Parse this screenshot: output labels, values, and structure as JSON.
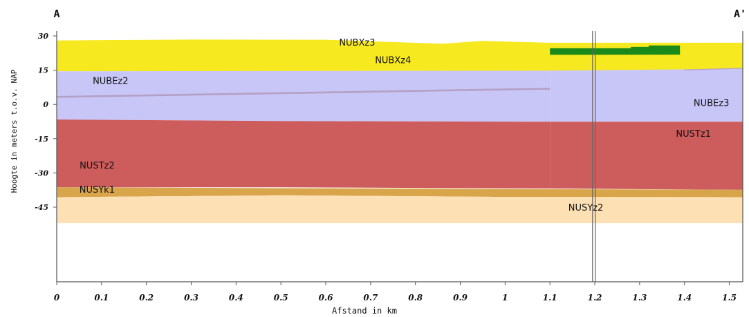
{
  "chart_data": {
    "type": "area",
    "section_labels": {
      "start": "A",
      "end": "A'"
    },
    "xlabel": "Afstand in km",
    "ylabel": "Hoogte in meters t.o.v. NAP",
    "xlim": [
      0,
      1.53
    ],
    "ylim": [
      -52,
      31
    ],
    "x_ticks": [
      0,
      0.1,
      0.2,
      0.3,
      0.4,
      0.5,
      0.6,
      0.7,
      0.8,
      0.9,
      1,
      1.1,
      1.2,
      1.3,
      1.4,
      1.5
    ],
    "x_tick_labels": [
      "0",
      "0.1",
      "0.2",
      "0.3",
      "0.4",
      "0.5",
      "0.6",
      "0.7",
      "0.8",
      "0.9",
      "1",
      "1.1",
      "1.2",
      "1.3",
      "1.4",
      "1.5"
    ],
    "y_ticks": [
      30,
      15,
      0,
      -15,
      -30,
      -45
    ],
    "y_tick_labels": [
      "30",
      "15",
      "0",
      "-15",
      "-30",
      "-45"
    ],
    "grid": false,
    "marker_line_x": 1.195,
    "layers": [
      {
        "name": "NUBXz3",
        "color": "#f7e91f",
        "top": [
          [
            0,
            28
          ],
          [
            0.3,
            28.4
          ],
          [
            0.6,
            28.3
          ],
          [
            0.86,
            26.6
          ],
          [
            0.95,
            27.8
          ],
          [
            1.1,
            27
          ]
        ],
        "bottom": [
          [
            0,
            14.5
          ],
          [
            1.53,
            14.8
          ]
        ]
      },
      {
        "name": "NUBXz4",
        "color": "#f7e91f",
        "top": [
          [
            1.1,
            24.5
          ],
          [
            1.53,
            26.2
          ]
        ],
        "bottom": [
          [
            0,
            14.5
          ],
          [
            1.53,
            14.8
          ]
        ]
      },
      {
        "name": "NUBXz4-green",
        "color": "#1a8a1a",
        "top": [
          [
            1.1,
            24.6
          ],
          [
            1.28,
            24.6
          ],
          [
            1.28,
            25.2
          ],
          [
            1.32,
            25.2
          ],
          [
            1.32,
            25.8
          ],
          [
            1.39,
            25.8
          ]
        ],
        "bottom": [
          [
            1.1,
            21.7
          ],
          [
            1.39,
            21.8
          ]
        ]
      },
      {
        "name": "NUBEz2",
        "color": "#c8c6f7",
        "top": [
          [
            0,
            14.5
          ],
          [
            1.1,
            14.8
          ]
        ],
        "bottom": [
          [
            0,
            -6.6
          ],
          [
            0.5,
            -7.3
          ],
          [
            1.1,
            -7.6
          ]
        ]
      },
      {
        "name": "NUBEz3",
        "color": "#c8c6f7",
        "top": [
          [
            1.1,
            14.8
          ],
          [
            1.53,
            15.6
          ]
        ],
        "bottom": [
          [
            1.1,
            -7.6
          ],
          [
            1.53,
            -7.6
          ]
        ]
      },
      {
        "name": "NUBEz2-line",
        "color": "#b4a0c4",
        "top": [
          [
            0,
            3.7
          ],
          [
            1.1,
            7.3
          ]
        ],
        "bottom": [
          [
            0,
            2.9
          ],
          [
            1.1,
            6.5
          ]
        ]
      },
      {
        "name": "NUBEz3-line",
        "color": "#b4a0c4",
        "top": [
          [
            1.4,
            15.3
          ],
          [
            1.53,
            16.0
          ]
        ],
        "bottom": [
          [
            1.4,
            14.9
          ],
          [
            1.53,
            15.6
          ]
        ]
      },
      {
        "name": "NUSTz2",
        "color": "#cd5c5c",
        "top": [
          [
            0,
            -6.6
          ],
          [
            0.5,
            -7.3
          ],
          [
            1.1,
            -7.6
          ]
        ],
        "bottom": [
          [
            0,
            -36.3
          ],
          [
            0.5,
            -36.3
          ],
          [
            1.1,
            -36.8
          ]
        ]
      },
      {
        "name": "NUSTz1",
        "color": "#cd5c5c",
        "top": [
          [
            1.1,
            -7.6
          ],
          [
            1.53,
            -7.6
          ]
        ],
        "bottom": [
          [
            1.1,
            -36.8
          ],
          [
            1.53,
            -37.4
          ]
        ]
      },
      {
        "name": "NUSYk1",
        "color": "#d9a54b",
        "top": [
          [
            0,
            -36.3
          ],
          [
            1.53,
            -37.4
          ]
        ],
        "bottom": [
          [
            0,
            -40.6
          ],
          [
            0.5,
            -39.8
          ],
          [
            1.0,
            -40.5
          ],
          [
            1.53,
            -40.6
          ]
        ]
      },
      {
        "name": "NUSYz2",
        "color": "#fde0b4",
        "top": [
          [
            0,
            -40.6
          ],
          [
            0.5,
            -39.8
          ],
          [
            1.0,
            -40.5
          ],
          [
            1.53,
            -40.6
          ]
        ],
        "bottom": [
          [
            0,
            -52
          ],
          [
            1.53,
            -52
          ]
        ]
      }
    ],
    "annotations": [
      {
        "text": "NUBXz3",
        "x": 0.67,
        "y": 25.8
      },
      {
        "text": "NUBXz4",
        "x": 0.75,
        "y": 18.0
      },
      {
        "text": "NUBEz2",
        "x": 0.12,
        "y": 9.0
      },
      {
        "text": "NUBEz3",
        "x": 1.46,
        "y": -0.7
      },
      {
        "text": "NUSTz1",
        "x": 1.42,
        "y": -14.2
      },
      {
        "text": "NUSTz2",
        "x": 0.09,
        "y": -28.0
      },
      {
        "text": "NUSYk1",
        "x": 0.09,
        "y": -38.7
      },
      {
        "text": "NUSYz2",
        "x": 1.18,
        "y": -46.5
      }
    ]
  }
}
